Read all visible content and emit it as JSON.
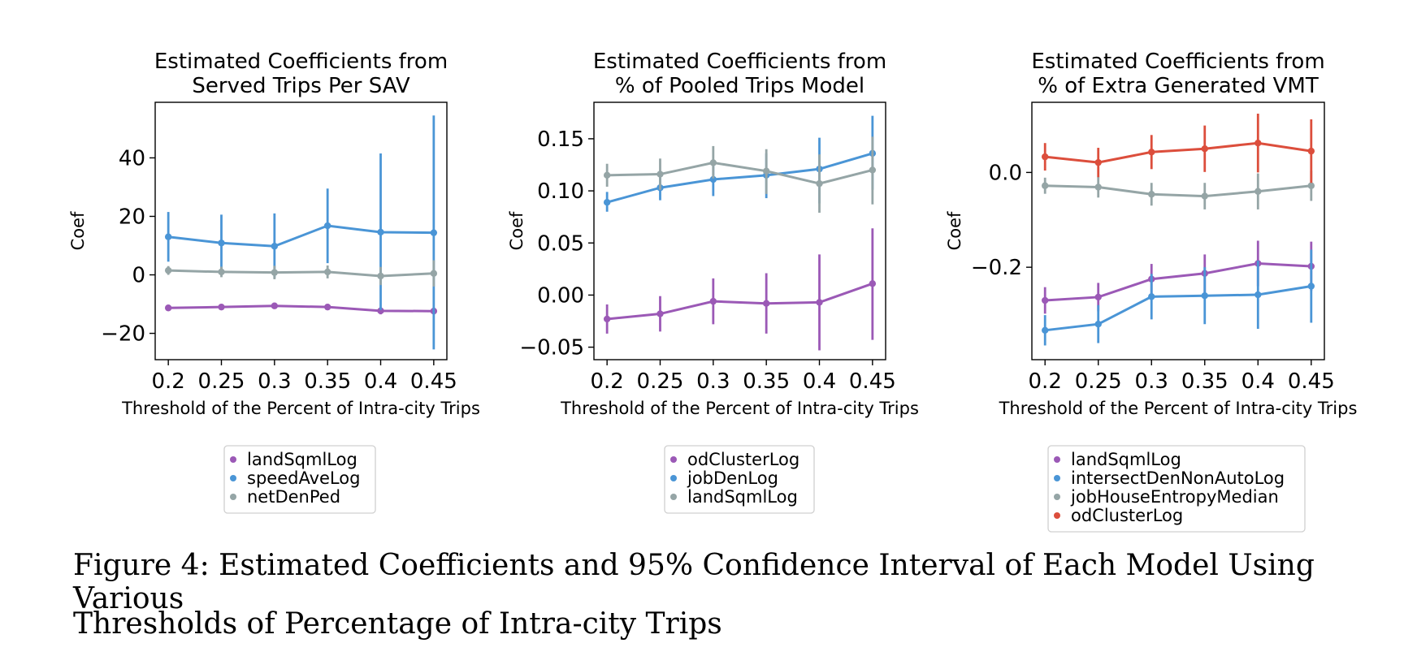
{
  "chart_data": [
    {
      "type": "line",
      "title": "Estimated Coefficients from\nServed Trips Per SAV",
      "xlabel": "Threshold of the Percent of Intra-city Trips",
      "ylabel": "Coef",
      "categories": [
        "0.2",
        "0.25",
        "0.3",
        "0.35",
        "0.4",
        "0.45"
      ],
      "ylim": [
        -29,
        59
      ],
      "yticks": [
        -20,
        0,
        20,
        40
      ],
      "ytick_labels": [
        "−20",
        "0",
        "20",
        "40"
      ],
      "series": [
        {
          "name": "landSqmlLog",
          "color": "#9b59b6",
          "values": [
            -11.3,
            -11.0,
            -10.6,
            -11.0,
            -12.3,
            -12.4
          ],
          "lower": [
            -12.3,
            -12.0,
            -11.6,
            -12.0,
            -13.5,
            -13.6
          ],
          "upper": [
            -10.3,
            -10.0,
            -9.6,
            -10.0,
            -11.1,
            -11.2
          ]
        },
        {
          "name": "speedAveLog",
          "color": "#4a95d6",
          "values": [
            13.0,
            10.9,
            9.8,
            16.8,
            14.6,
            14.4
          ],
          "lower": [
            4.5,
            1.5,
            -1.0,
            4.0,
            -12.0,
            -25.5
          ],
          "upper": [
            21.5,
            20.6,
            21.0,
            29.5,
            41.5,
            54.5
          ]
        },
        {
          "name": "netDenPed",
          "color": "#95a5a6",
          "values": [
            1.5,
            1.0,
            0.8,
            1.0,
            -0.4,
            0.5
          ],
          "lower": [
            0.0,
            -0.8,
            -1.5,
            -1.2,
            -3.5,
            -4.0
          ],
          "upper": [
            3.0,
            2.8,
            3.1,
            3.2,
            2.7,
            5.0
          ]
        }
      ]
    },
    {
      "type": "line",
      "title": "Estimated Coefficients from\n% of Pooled Trips Model",
      "xlabel": "Threshold of the Percent of Intra-city Trips",
      "ylabel": "Coef",
      "categories": [
        "0.2",
        "0.25",
        "0.3",
        "0.35",
        "0.4",
        "0.45"
      ],
      "ylim": [
        -0.062,
        0.185
      ],
      "yticks": [
        -0.05,
        0.0,
        0.05,
        0.1,
        0.15
      ],
      "ytick_labels": [
        "−0.05",
        "0.00",
        "0.05",
        "0.10",
        "0.15"
      ],
      "series": [
        {
          "name": "odClusterLog",
          "color": "#9b59b6",
          "values": [
            -0.023,
            -0.018,
            -0.006,
            -0.008,
            -0.007,
            0.011
          ],
          "lower": [
            -0.037,
            -0.035,
            -0.028,
            -0.037,
            -0.053,
            -0.043
          ],
          "upper": [
            -0.009,
            -0.001,
            0.016,
            0.021,
            0.039,
            0.064
          ]
        },
        {
          "name": "jobDenLog",
          "color": "#4a95d6",
          "values": [
            0.089,
            0.103,
            0.111,
            0.115,
            0.121,
            0.136
          ],
          "lower": [
            0.08,
            0.091,
            0.095,
            0.093,
            0.088,
            0.101
          ],
          "upper": [
            0.099,
            0.116,
            0.127,
            0.136,
            0.151,
            0.172
          ]
        },
        {
          "name": "landSqmlLog",
          "color": "#95a5a6",
          "values": [
            0.115,
            0.116,
            0.127,
            0.119,
            0.107,
            0.12
          ],
          "lower": [
            0.104,
            0.101,
            0.112,
            0.097,
            0.079,
            0.087
          ],
          "upper": [
            0.126,
            0.131,
            0.143,
            0.14,
            0.135,
            0.152
          ]
        }
      ]
    },
    {
      "type": "line",
      "title": "Estimated Coefficients from\n% of Extra Generated VMT",
      "xlabel": "Threshold of the Percent of Intra-city Trips",
      "ylabel": "Coef",
      "categories": [
        "0.2",
        "0.25",
        "0.3",
        "0.35",
        "0.4",
        "0.45"
      ],
      "ylim": [
        -0.395,
        0.148
      ],
      "yticks": [
        -0.2,
        0.0
      ],
      "ytick_labels": [
        "−0.2",
        "0.0"
      ],
      "series": [
        {
          "name": "landSqmlLog",
          "color": "#9b59b6",
          "values": [
            -0.27,
            -0.263,
            -0.225,
            -0.213,
            -0.192,
            -0.198
          ],
          "lower": [
            -0.298,
            -0.293,
            -0.257,
            -0.253,
            -0.24,
            -0.25
          ],
          "upper": [
            -0.242,
            -0.233,
            -0.193,
            -0.173,
            -0.144,
            -0.146
          ]
        },
        {
          "name": "intersectDenNonAutoLog",
          "color": "#4a95d6",
          "values": [
            -0.333,
            -0.32,
            -0.262,
            -0.26,
            -0.258,
            -0.24
          ],
          "lower": [
            -0.365,
            -0.36,
            -0.31,
            -0.32,
            -0.33,
            -0.317
          ],
          "upper": [
            -0.301,
            -0.28,
            -0.214,
            -0.2,
            -0.186,
            -0.163
          ]
        },
        {
          "name": "jobHouseEntropyMedian",
          "color": "#95a5a6",
          "values": [
            -0.028,
            -0.031,
            -0.046,
            -0.05,
            -0.04,
            -0.028
          ],
          "lower": [
            -0.045,
            -0.053,
            -0.07,
            -0.078,
            -0.078,
            -0.06
          ],
          "upper": [
            -0.011,
            -0.009,
            -0.022,
            -0.022,
            -0.002,
            0.004
          ]
        },
        {
          "name": "odClusterLog",
          "color": "#dc4e3c",
          "values": [
            0.033,
            0.021,
            0.043,
            0.05,
            0.062,
            0.045
          ],
          "lower": [
            0.004,
            -0.01,
            0.007,
            0.001,
            0.0,
            -0.022
          ],
          "upper": [
            0.062,
            0.052,
            0.079,
            0.099,
            0.124,
            0.112
          ]
        }
      ]
    }
  ],
  "caption": {
    "line1": "Figure 4: Estimated Coefficients and 95% Confidence Interval of Each Model Using Various",
    "line2": "Thresholds of Percentage of Intra-city Trips"
  }
}
